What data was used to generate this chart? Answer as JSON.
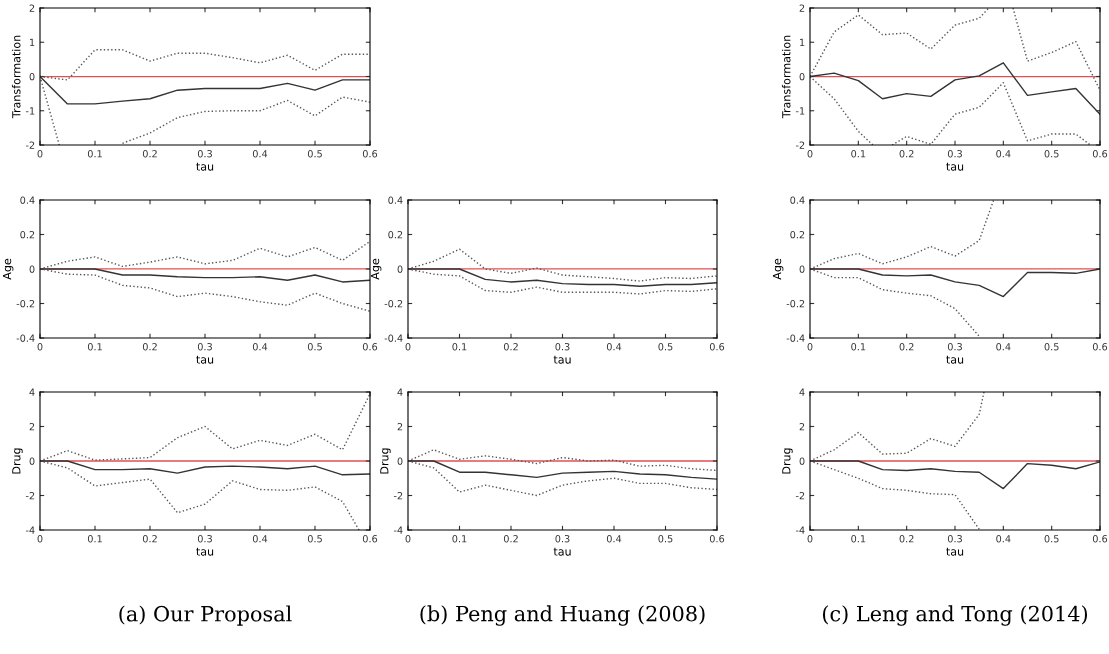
{
  "chart_data": [
    {
      "type": "line",
      "xlabel": "tau",
      "ylabel": "Transformation",
      "x": [
        0,
        0.05,
        0.1,
        0.15,
        0.2,
        0.25,
        0.3,
        0.35,
        0.4,
        0.45,
        0.5,
        0.55,
        0.6
      ],
      "xlim": [
        0,
        0.6
      ],
      "xticks": [
        0,
        0.1,
        0.2,
        0.3,
        0.4,
        0.5,
        0.6
      ],
      "ylim": [
        -2,
        2
      ],
      "yticks": [
        -2,
        -1,
        0,
        1,
        2
      ],
      "ref_lines": [
        {
          "axis": "y",
          "value": 0,
          "color": "#e05050"
        }
      ],
      "series": [
        {
          "color": "#333333",
          "line_style": "solid",
          "values": [
            0,
            -0.8,
            -0.8,
            -0.72,
            -0.65,
            -0.4,
            -0.35,
            -0.35,
            -0.35,
            -0.2,
            -0.4,
            -0.1,
            -0.1
          ]
        },
        {
          "color": "#555555",
          "line_style": "dotted",
          "values": [
            0,
            -0.1,
            0.78,
            0.78,
            0.45,
            0.68,
            0.68,
            0.55,
            0.4,
            0.62,
            0.18,
            0.65,
            0.65
          ]
        },
        {
          "color": "#555555",
          "line_style": "dotted",
          "x": [
            0,
            0.035,
            0.1,
            0.15,
            0.2,
            0.25,
            0.3,
            0.35,
            0.4,
            0.45,
            0.5,
            0.55,
            0.6
          ],
          "values": [
            0,
            -2,
            null,
            -1.95,
            -1.65,
            -1.2,
            -1.02,
            -1.0,
            -1.0,
            -0.7,
            -1.15,
            -0.6,
            -0.75
          ]
        }
      ]
    },
    {
      "type": "line",
      "xlabel": "tau",
      "ylabel": "Transformation",
      "x": [
        0,
        0.05,
        0.1,
        0.15,
        0.2,
        0.25,
        0.3,
        0.35,
        0.4,
        0.45,
        0.5,
        0.55,
        0.6
      ],
      "xlim": [
        0,
        0.6
      ],
      "xticks": [
        0,
        0.1,
        0.2,
        0.3,
        0.4,
        0.5,
        0.6
      ],
      "ylim": [
        -2,
        2
      ],
      "yticks": [
        -2,
        -1,
        0,
        1,
        2
      ],
      "ref_lines": [
        {
          "axis": "y",
          "value": 0,
          "color": "#e05050"
        }
      ],
      "series": [
        {
          "color": "#333333",
          "line_style": "solid",
          "values": [
            0,
            0.1,
            -0.12,
            -0.65,
            -0.5,
            -0.58,
            -0.1,
            0.02,
            0.4,
            -0.55,
            -0.45,
            -0.35,
            -1.1
          ]
        },
        {
          "color": "#555555",
          "line_style": "dotted",
          "x": [
            0,
            0.05,
            0.1,
            0.15,
            0.2,
            0.25,
            0.3,
            0.35,
            0.37,
            0.4,
            0.42,
            0.45,
            0.5,
            0.55,
            0.6
          ],
          "values": [
            0,
            1.3,
            1.8,
            1.22,
            1.27,
            0.8,
            1.5,
            1.7,
            2,
            null,
            2,
            0.45,
            0.7,
            1.02,
            -0.4
          ]
        },
        {
          "color": "#555555",
          "line_style": "dotted",
          "x": [
            0,
            0.05,
            0.1,
            0.13,
            0.15,
            0.17,
            0.2,
            0.25,
            0.3,
            0.35,
            0.4,
            0.45,
            0.5,
            0.55,
            0.58
          ],
          "values": [
            0,
            -0.65,
            -1.6,
            -2,
            null,
            -2,
            -1.75,
            -1.98,
            -1.1,
            -0.9,
            -0.18,
            -1.88,
            -1.68,
            -1.68,
            -2
          ]
        }
      ]
    },
    {
      "type": "line",
      "xlabel": "tau",
      "ylabel": "Age",
      "x": [
        0,
        0.05,
        0.1,
        0.15,
        0.2,
        0.25,
        0.3,
        0.35,
        0.4,
        0.45,
        0.5,
        0.55,
        0.6
      ],
      "xlim": [
        0,
        0.6
      ],
      "xticks": [
        0,
        0.1,
        0.2,
        0.3,
        0.4,
        0.5,
        0.6
      ],
      "ylim": [
        -0.4,
        0.4
      ],
      "yticks": [
        -0.4,
        -0.2,
        0,
        0.2,
        0.4
      ],
      "ref_lines": [
        {
          "axis": "y",
          "value": 0,
          "color": "#e05050"
        }
      ],
      "series": [
        {
          "color": "#333333",
          "line_style": "solid",
          "values": [
            0,
            0,
            0,
            -0.035,
            -0.035,
            -0.045,
            -0.05,
            -0.05,
            -0.045,
            -0.065,
            -0.035,
            -0.075,
            -0.065
          ]
        },
        {
          "color": "#555555",
          "line_style": "dotted",
          "values": [
            0,
            0.045,
            0.07,
            0.015,
            0.04,
            0.07,
            0.03,
            0.05,
            0.12,
            0.07,
            0.125,
            0.05,
            0.16
          ]
        },
        {
          "color": "#555555",
          "line_style": "dotted",
          "values": [
            0,
            -0.03,
            -0.035,
            -0.095,
            -0.11,
            -0.16,
            -0.14,
            -0.16,
            -0.19,
            -0.21,
            -0.14,
            -0.2,
            -0.245
          ]
        }
      ]
    },
    {
      "type": "line",
      "xlabel": "tau",
      "ylabel": "Age",
      "x": [
        0,
        0.05,
        0.1,
        0.15,
        0.2,
        0.25,
        0.3,
        0.35,
        0.4,
        0.45,
        0.5,
        0.55,
        0.6
      ],
      "xlim": [
        0,
        0.6
      ],
      "xticks": [
        0,
        0.1,
        0.2,
        0.3,
        0.4,
        0.5,
        0.6
      ],
      "ylim": [
        -0.4,
        0.4
      ],
      "yticks": [
        -0.4,
        -0.2,
        0,
        0.2,
        0.4
      ],
      "ref_lines": [
        {
          "axis": "y",
          "value": 0,
          "color": "#e05050"
        }
      ],
      "series": [
        {
          "color": "#333333",
          "line_style": "solid",
          "values": [
            0,
            0,
            0,
            -0.06,
            -0.075,
            -0.065,
            -0.085,
            -0.09,
            -0.09,
            -0.1,
            -0.09,
            -0.09,
            -0.08
          ]
        },
        {
          "color": "#555555",
          "line_style": "dotted",
          "values": [
            0,
            0.045,
            0.115,
            0,
            -0.025,
            0.005,
            -0.035,
            -0.045,
            -0.055,
            -0.07,
            -0.05,
            -0.055,
            -0.04
          ]
        },
        {
          "color": "#555555",
          "line_style": "dotted",
          "values": [
            0,
            -0.03,
            -0.04,
            -0.125,
            -0.135,
            -0.105,
            -0.135,
            -0.135,
            -0.135,
            -0.145,
            -0.125,
            -0.13,
            -0.115
          ]
        }
      ]
    },
    {
      "type": "line",
      "xlabel": "tau",
      "ylabel": "Age",
      "x": [
        0,
        0.05,
        0.1,
        0.15,
        0.2,
        0.25,
        0.3,
        0.35,
        0.4,
        0.45,
        0.5,
        0.55,
        0.6
      ],
      "xlim": [
        0,
        0.6
      ],
      "xticks": [
        0,
        0.1,
        0.2,
        0.3,
        0.4,
        0.5,
        0.6
      ],
      "ylim": [
        -0.4,
        0.4
      ],
      "yticks": [
        -0.4,
        -0.2,
        0,
        0.2,
        0.4
      ],
      "ref_lines": [
        {
          "axis": "y",
          "value": 0,
          "color": "#e05050"
        }
      ],
      "series": [
        {
          "color": "#333333",
          "line_style": "solid",
          "values": [
            0,
            0,
            0,
            -0.035,
            -0.04,
            -0.035,
            -0.075,
            -0.095,
            -0.16,
            -0.02,
            -0.02,
            -0.025,
            0
          ]
        },
        {
          "color": "#555555",
          "line_style": "dotted",
          "x": [
            0,
            0.05,
            0.1,
            0.15,
            0.2,
            0.25,
            0.3,
            0.35,
            0.38
          ],
          "values": [
            0,
            0.06,
            0.09,
            0.03,
            0.07,
            0.13,
            0.075,
            0.165,
            0.4
          ]
        },
        {
          "color": "#555555",
          "line_style": "dotted",
          "x": [
            0,
            0.05,
            0.1,
            0.15,
            0.2,
            0.25,
            0.3,
            0.35
          ],
          "values": [
            0,
            -0.05,
            -0.05,
            -0.12,
            -0.14,
            -0.155,
            -0.23,
            -0.39
          ]
        }
      ]
    },
    {
      "type": "line",
      "xlabel": "tau",
      "ylabel": "Drug",
      "x": [
        0,
        0.05,
        0.1,
        0.15,
        0.2,
        0.25,
        0.3,
        0.35,
        0.4,
        0.45,
        0.5,
        0.55,
        0.6
      ],
      "xlim": [
        0,
        0.6
      ],
      "xticks": [
        0,
        0.1,
        0.2,
        0.3,
        0.4,
        0.5,
        0.6
      ],
      "ylim": [
        -4,
        4
      ],
      "yticks": [
        -4,
        -2,
        0,
        2,
        4
      ],
      "ref_lines": [
        {
          "axis": "y",
          "value": 0,
          "color": "#e05050"
        }
      ],
      "annotations": [
        "(a) Our Proposal"
      ],
      "series": [
        {
          "color": "#333333",
          "line_style": "solid",
          "values": [
            0,
            0,
            -0.5,
            -0.5,
            -0.45,
            -0.7,
            -0.35,
            -0.3,
            -0.35,
            -0.45,
            -0.3,
            -0.8,
            -0.75
          ]
        },
        {
          "color": "#555555",
          "line_style": "dotted",
          "values": [
            0,
            0.6,
            0.05,
            0.12,
            0.2,
            1.35,
            2.0,
            0.7,
            1.2,
            0.9,
            1.55,
            0.65,
            3.9
          ]
        },
        {
          "color": "#555555",
          "line_style": "dotted",
          "x": [
            0,
            0.05,
            0.1,
            0.15,
            0.2,
            0.25,
            0.3,
            0.35,
            0.4,
            0.45,
            0.5,
            0.55,
            0.58
          ],
          "values": [
            0,
            -0.4,
            -1.45,
            -1.25,
            -1.05,
            -3.0,
            -2.5,
            -1.15,
            -1.65,
            -1.7,
            -1.5,
            -2.35,
            -4
          ]
        }
      ]
    },
    {
      "type": "line",
      "xlabel": "tau",
      "ylabel": "Drug",
      "x": [
        0,
        0.05,
        0.1,
        0.15,
        0.2,
        0.25,
        0.3,
        0.35,
        0.4,
        0.45,
        0.5,
        0.55,
        0.6
      ],
      "xlim": [
        0,
        0.6
      ],
      "xticks": [
        0,
        0.1,
        0.2,
        0.3,
        0.4,
        0.5,
        0.6
      ],
      "ylim": [
        -4,
        4
      ],
      "yticks": [
        -4,
        -2,
        0,
        2,
        4
      ],
      "ref_lines": [
        {
          "axis": "y",
          "value": 0,
          "color": "#e05050"
        }
      ],
      "annotations": [
        "(b) Peng and Huang (2008)"
      ],
      "series": [
        {
          "color": "#333333",
          "line_style": "solid",
          "values": [
            0,
            0,
            -0.65,
            -0.65,
            -0.8,
            -0.95,
            -0.7,
            -0.65,
            -0.6,
            -0.75,
            -0.8,
            -0.95,
            -1.05
          ]
        },
        {
          "color": "#555555",
          "line_style": "dotted",
          "values": [
            0,
            0.65,
            0.1,
            0.3,
            0.1,
            -0.15,
            0.2,
            0,
            0.05,
            -0.3,
            -0.25,
            -0.45,
            -0.55
          ]
        },
        {
          "color": "#555555",
          "line_style": "dotted",
          "values": [
            0,
            -0.4,
            -1.8,
            -1.4,
            -1.7,
            -2.0,
            -1.4,
            -1.15,
            -1.0,
            -1.3,
            -1.3,
            -1.55,
            -1.65
          ]
        }
      ]
    },
    {
      "type": "line",
      "xlabel": "tau",
      "ylabel": "Drug",
      "x": [
        0,
        0.05,
        0.1,
        0.15,
        0.2,
        0.25,
        0.3,
        0.35,
        0.4,
        0.45,
        0.5,
        0.55,
        0.6
      ],
      "xlim": [
        0,
        0.6
      ],
      "xticks": [
        0,
        0.1,
        0.2,
        0.3,
        0.4,
        0.5,
        0.6
      ],
      "ylim": [
        -4,
        4
      ],
      "yticks": [
        -4,
        -2,
        0,
        2,
        4
      ],
      "ref_lines": [
        {
          "axis": "y",
          "value": 0,
          "color": "#e05050"
        }
      ],
      "annotations": [
        "(c) Leng and Tong (2014)"
      ],
      "series": [
        {
          "color": "#333333",
          "line_style": "solid",
          "values": [
            0,
            0,
            0,
            -0.5,
            -0.55,
            -0.45,
            -0.6,
            -0.65,
            -1.6,
            -0.15,
            -0.25,
            -0.45,
            -0.05
          ]
        },
        {
          "color": "#555555",
          "line_style": "dotted",
          "x": [
            0,
            0.05,
            0.1,
            0.15,
            0.2,
            0.25,
            0.3,
            0.35,
            0.36
          ],
          "values": [
            0,
            0.65,
            1.65,
            0.4,
            0.45,
            1.3,
            0.85,
            2.7,
            4
          ]
        },
        {
          "color": "#555555",
          "line_style": "dotted",
          "x": [
            0,
            0.05,
            0.1,
            0.15,
            0.2,
            0.25,
            0.3,
            0.35
          ],
          "values": [
            0,
            -0.5,
            -1.0,
            -1.6,
            -1.7,
            -1.9,
            -1.95,
            -3.95
          ]
        }
      ]
    }
  ]
}
